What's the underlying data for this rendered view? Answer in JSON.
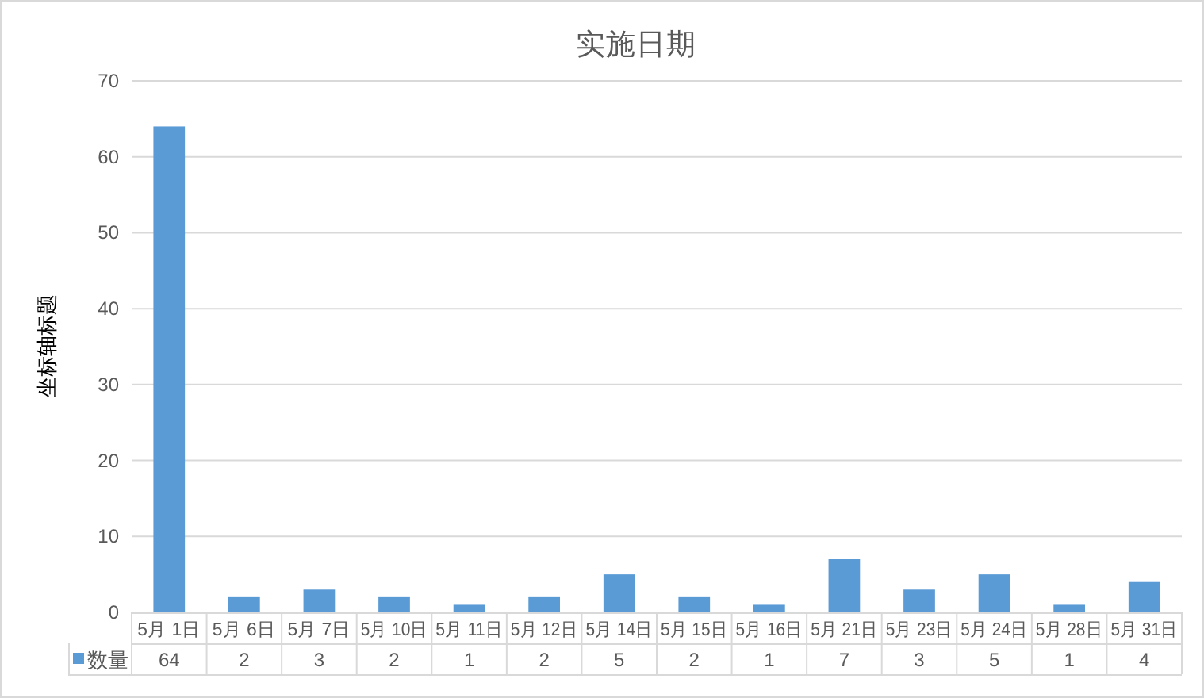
{
  "chart_data": {
    "type": "bar",
    "title": "实施日期",
    "ylabel": "坐标轴标题",
    "categories": [
      "5月 1日",
      "5月 6日",
      "5月 7日",
      "5月 10日",
      "5月 11日",
      "5月 12日",
      "5月 14日",
      "5月 15日",
      "5月 16日",
      "5月 21日",
      "5月 23日",
      "5月 24日",
      "5月 28日",
      "5月 31日"
    ],
    "series": [
      {
        "name": "数量",
        "color": "#5b9bd5",
        "values": [
          64,
          2,
          3,
          2,
          1,
          2,
          5,
          2,
          1,
          7,
          3,
          5,
          1,
          4
        ]
      }
    ],
    "ylim": [
      0,
      70
    ],
    "yticks": [
      0,
      10,
      20,
      30,
      40,
      50,
      60,
      70
    ],
    "grid": "y",
    "data_labels": true,
    "legend": "bottom"
  }
}
